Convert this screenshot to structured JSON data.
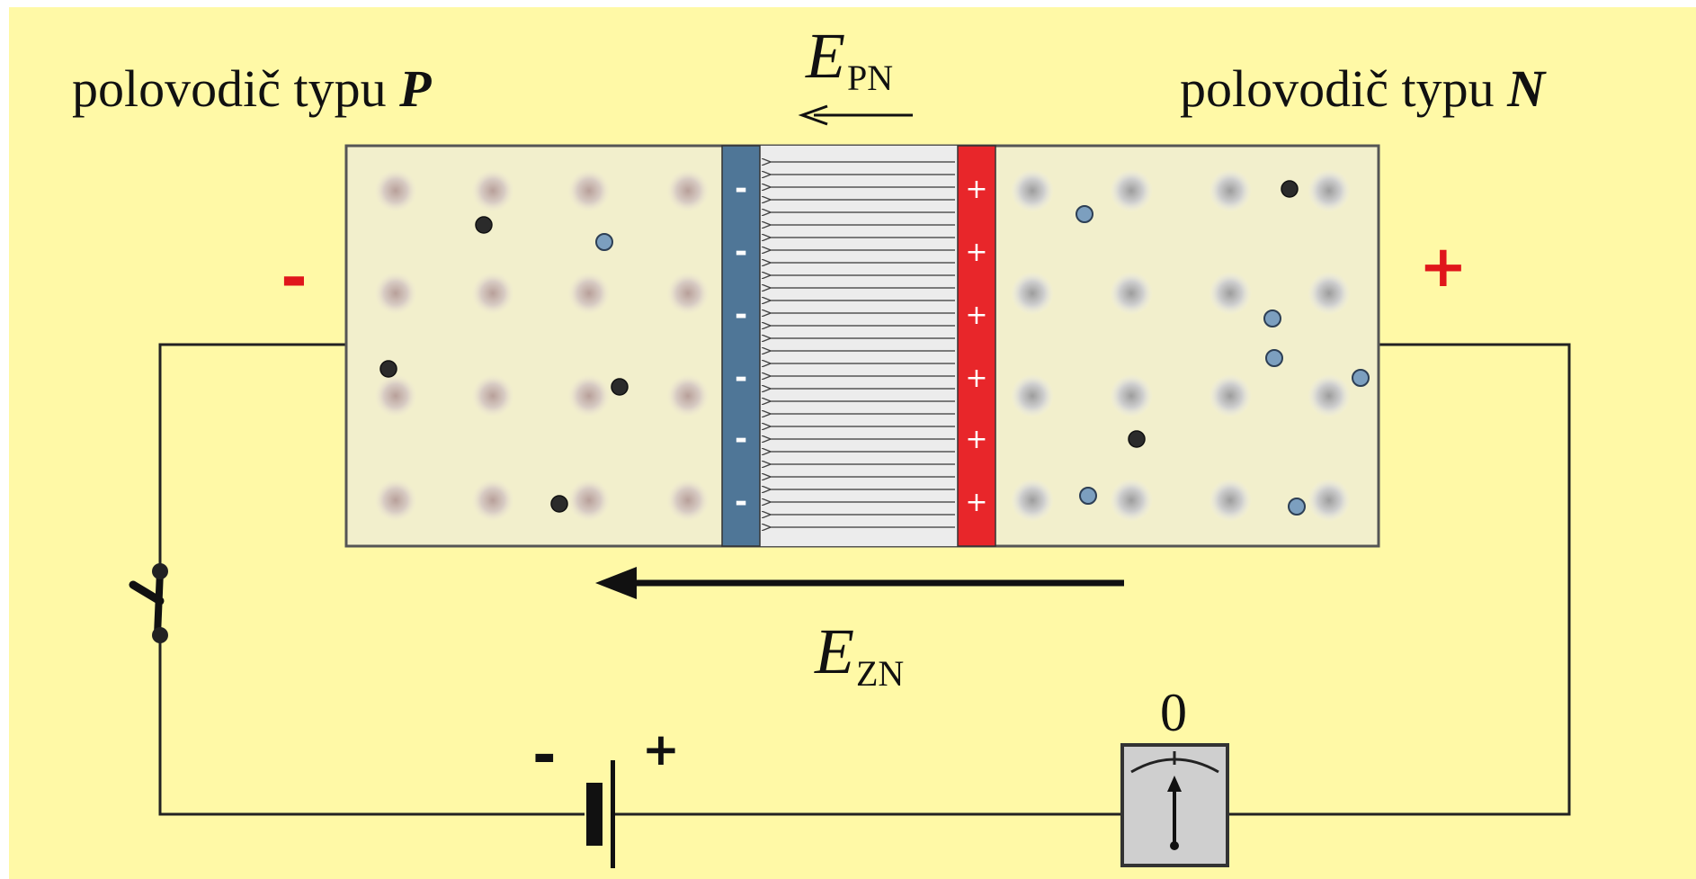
{
  "labels": {
    "p_region": "polovodič typu ",
    "p_letter": "P",
    "n_region": "polovodič typu ",
    "n_letter": "N",
    "field_pn": "E",
    "field_pn_sub": "PN",
    "field_zn": "E",
    "field_zn_sub": "ZN",
    "terminal_left": "-",
    "terminal_right": "+",
    "battery_minus": "-",
    "battery_plus": "+",
    "meter_reading": "0"
  },
  "depletion": {
    "negative_signs": [
      "-",
      "-",
      "-",
      "-",
      "-",
      "-"
    ],
    "positive_signs": [
      "+",
      "+",
      "+",
      "+",
      "+",
      "+"
    ]
  },
  "colors": {
    "background": "#fff9a6",
    "crystal": "#f2efcc",
    "crystal_border": "#555555",
    "negative_layer": "#4f7697",
    "positive_layer": "#e8262a",
    "depletion_zone": "#ececec",
    "electron": "#2b2b2b",
    "hole": "#7c9fbf",
    "terminal_sign": "#e0161b",
    "meter_body": "#cfcfcf"
  }
}
